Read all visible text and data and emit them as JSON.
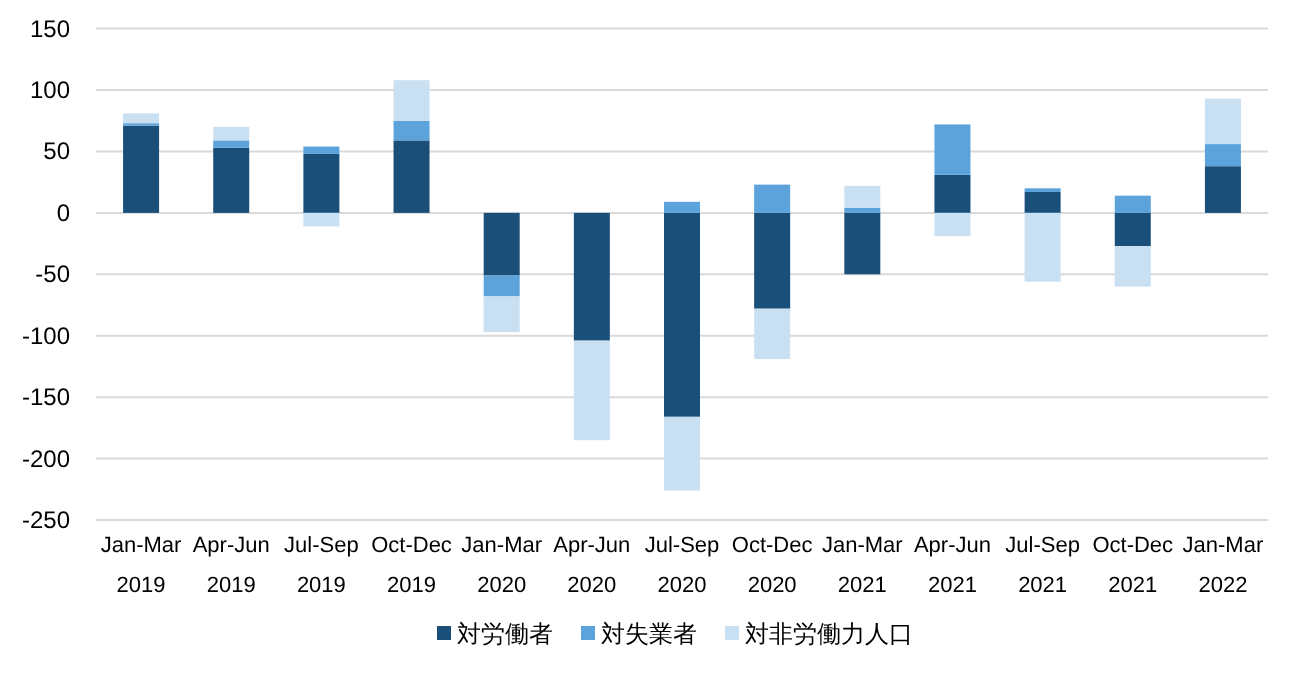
{
  "chart_data": {
    "type": "bar",
    "stacked": true,
    "categories": [
      "Jan-Mar\n2019",
      "Apr-Jun\n2019",
      "Jul-Sep\n2019",
      "Oct-Dec\n2019",
      "Jan-Mar\n2020",
      "Apr-Jun\n2020",
      "Jul-Sep\n2020",
      "Oct-Dec\n2020",
      "Jan-Mar\n2021",
      "Apr-Jun\n2021",
      "Jul-Sep\n2021",
      "Oct-Dec\n2021",
      "Jan-Mar\n2022"
    ],
    "series": [
      {
        "name": "対労働者",
        "color": "#1a4f7a",
        "values": [
          71,
          53,
          48,
          59,
          -51,
          -104,
          -166,
          -78,
          -50,
          31,
          17,
          -27,
          38
        ]
      },
      {
        "name": "対失業者",
        "color": "#5ca3dc",
        "values": [
          2,
          6,
          6,
          16,
          -17,
          0,
          9,
          23,
          4,
          41,
          3,
          14,
          18
        ]
      },
      {
        "name": "対非労働力人口",
        "color": "#c9dff2",
        "values": [
          8,
          11,
          -11,
          33,
          -29,
          -81,
          -60,
          -41,
          18,
          -19,
          -56,
          -33,
          37
        ]
      }
    ],
    "ylim": [
      -250,
      150
    ],
    "yticks": [
      -250,
      -200,
      -150,
      -100,
      -50,
      0,
      50,
      100,
      150
    ],
    "grid": "y",
    "legend": "bottom"
  }
}
